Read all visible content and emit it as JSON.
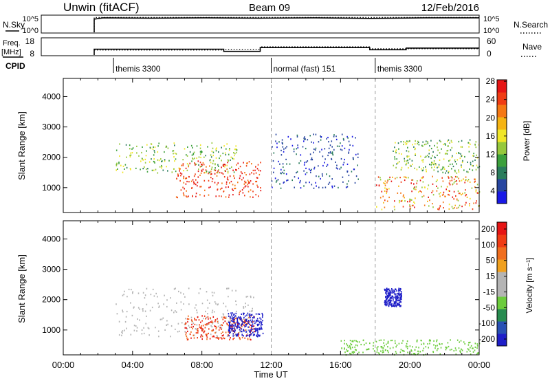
{
  "header": {
    "radar": "Unwin (fitACF)",
    "beam": "Beam 09",
    "date": "12/Feb/2016"
  },
  "chart_data": [
    {
      "type": "line",
      "panel": "noise",
      "left_label": "N.Sky",
      "right_label": "N.Search",
      "left_ticks": [
        "10^5",
        "10^0"
      ],
      "right_ticks": [
        "10^5",
        "10^0"
      ],
      "series": [
        {
          "name": "N.Sky",
          "style": "solid",
          "x": [
            0,
            2.9,
            2.9,
            3.4,
            6,
            9,
            12,
            15,
            18,
            21,
            24
          ],
          "y": [
            null,
            0,
            4.0,
            4.4,
            4.3,
            4.4,
            4.3,
            4.4,
            4.2,
            4.4,
            4.4
          ]
        },
        {
          "name": "N.Search",
          "style": "dotted",
          "x": [
            0,
            2.9,
            2.9,
            6,
            12,
            18,
            24
          ],
          "y": [
            null,
            0,
            4.5,
            4.5,
            4.5,
            4.5,
            4.5
          ]
        }
      ]
    },
    {
      "type": "line",
      "panel": "frequency",
      "left_label": "Freq. [MHz]",
      "right_label": "Nave",
      "left_ticks": [
        18,
        8
      ],
      "right_ticks": [
        60,
        0
      ],
      "series": [
        {
          "name": "Freq.",
          "style": "solid",
          "x": [
            2.9,
            2.9,
            10,
            10,
            12,
            12,
            18,
            18,
            20,
            20,
            24
          ],
          "y": [
            8,
            11.5,
            11.5,
            10.2,
            10.2,
            12.5,
            12.5,
            11.2,
            11.2,
            12.2,
            12.2
          ]
        },
        {
          "name": "Nave",
          "style": "dotted",
          "x": [
            2.9,
            10,
            10,
            12,
            12,
            18,
            18,
            24
          ],
          "y": [
            11,
            11,
            11.5,
            11.5,
            13,
            13,
            11.8,
            11.8
          ]
        }
      ]
    },
    {
      "type": "table",
      "panel": "cpid",
      "label": "CPID",
      "segments": [
        {
          "start": 2.9,
          "label": "themis 3300"
        },
        {
          "start": 12.0,
          "label": "normal (fast) 151"
        },
        {
          "start": 18.0,
          "label": "themis 3300"
        }
      ]
    },
    {
      "type": "heatmap",
      "panel": "power",
      "ylabel": "Slant Range [km]",
      "colorbar_label": "Power [dB]",
      "ylim": [
        180,
        4600
      ],
      "yticks": [
        1000,
        2000,
        3000,
        4000
      ],
      "colorbar_ticks": [
        4,
        8,
        12,
        16,
        20,
        24,
        28
      ],
      "colors": [
        "#1919e6",
        "#2846a0",
        "#2a7c5c",
        "#3ca03c",
        "#96c83c",
        "#f0e628",
        "#f5b414",
        "#f57814",
        "#f03c14",
        "#e61414"
      ],
      "scatter_regions": [
        {
          "x": [
            3,
            10
          ],
          "y": [
            1500,
            2500
          ],
          "level": [
            0.25,
            0.6
          ]
        },
        {
          "x": [
            6.5,
            11.5
          ],
          "y": [
            700,
            1900
          ],
          "level": [
            0.75,
            1.0
          ]
        },
        {
          "x": [
            12,
            17
          ],
          "y": [
            1000,
            2800
          ],
          "level": [
            0.05,
            0.25
          ]
        },
        {
          "x": [
            18,
            24
          ],
          "y": [
            300,
            1400
          ],
          "level": [
            0.4,
            1.0
          ]
        },
        {
          "x": [
            19,
            24
          ],
          "y": [
            1500,
            2600
          ],
          "level": [
            0.2,
            0.6
          ]
        }
      ]
    },
    {
      "type": "heatmap",
      "panel": "velocity",
      "ylabel": "Slant Range [km]",
      "colorbar_label": "Velocity [m s⁻¹]",
      "ylim": [
        180,
        4600
      ],
      "yticks": [
        1000,
        2000,
        3000,
        4000
      ],
      "colorbar_ticks": [
        200,
        100,
        50,
        15,
        -15,
        -50,
        -100,
        -200
      ],
      "colors": [
        "#1e1ec8",
        "#2850b4",
        "#288c50",
        "#6ccc3c",
        "#b4b4b4",
        "#b4b4b4",
        "#f0a01e",
        "#f06e1e",
        "#f03c14",
        "#e61414"
      ],
      "scatter_regions": [
        {
          "x": [
            3,
            11
          ],
          "y": [
            800,
            2400
          ],
          "level": [
            0.45,
            0.55
          ]
        },
        {
          "x": [
            7,
            11
          ],
          "y": [
            700,
            1500
          ],
          "level": [
            0.7,
            1.0
          ]
        },
        {
          "x": [
            9.5,
            11.5
          ],
          "y": [
            800,
            1600
          ],
          "level": [
            0.0,
            0.1
          ]
        },
        {
          "x": [
            16,
            24
          ],
          "y": [
            200,
            700
          ],
          "level": [
            0.3,
            0.4
          ]
        },
        {
          "x": [
            18.5,
            19.5
          ],
          "y": [
            1800,
            2400
          ],
          "level": [
            0.0,
            0.1
          ]
        }
      ],
      "xlabel": "Time UT",
      "xticks": [
        "00:00",
        "04:00",
        "08:00",
        "12:00",
        "16:00",
        "20:00",
        "00:00"
      ],
      "xlim": [
        0,
        24
      ]
    }
  ]
}
